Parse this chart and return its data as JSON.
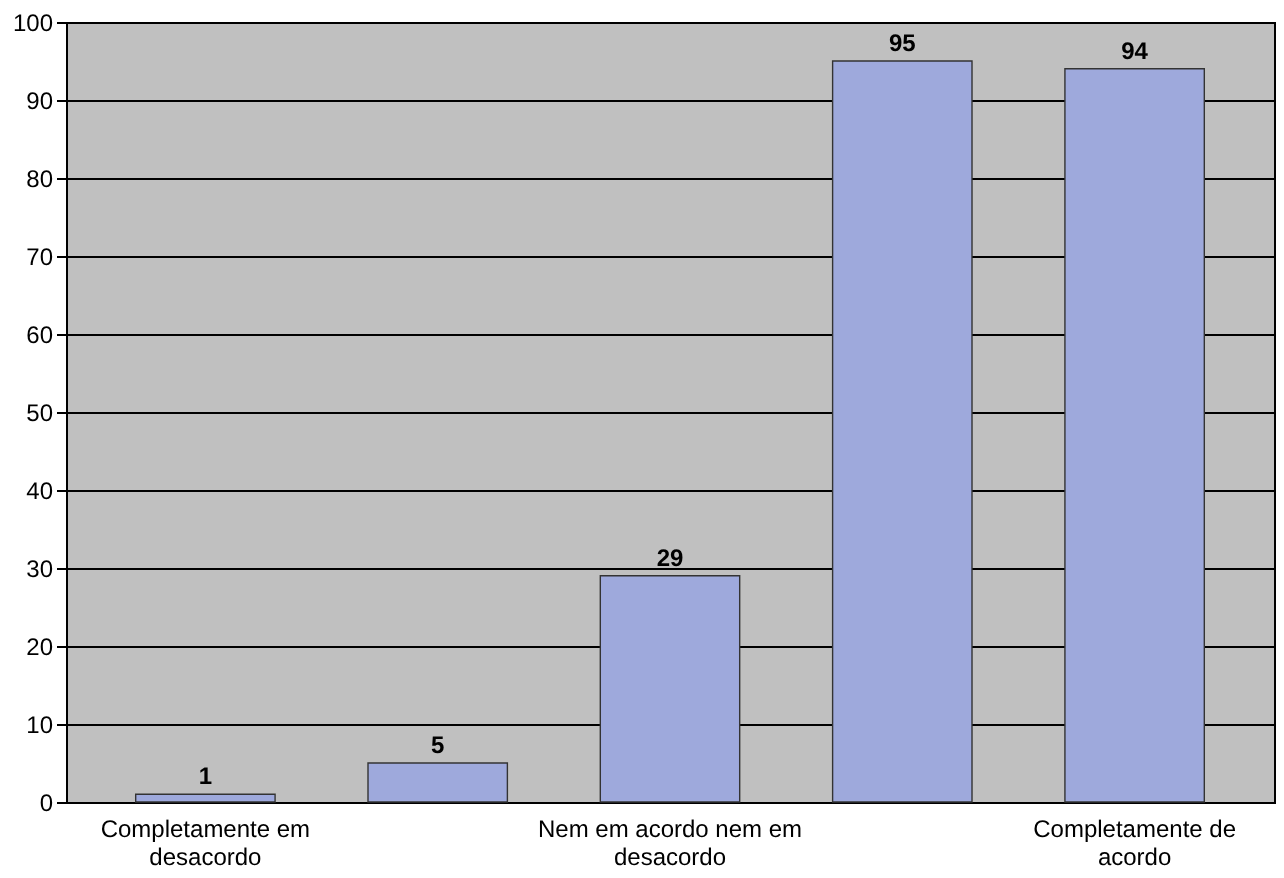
{
  "chart_data": {
    "type": "bar",
    "categories": [
      "Completamente em desacordo",
      null,
      "Nem em acordo nem em desacordo",
      null,
      "Completamente de acordo"
    ],
    "values": [
      1,
      5,
      29,
      95,
      94
    ],
    "color": "#9ea9dc",
    "ylim": [
      0,
      100
    ],
    "yticks": [
      0,
      10,
      20,
      30,
      40,
      50,
      60,
      70,
      80,
      90,
      100
    ],
    "grid": "y",
    "data_labels": true
  }
}
